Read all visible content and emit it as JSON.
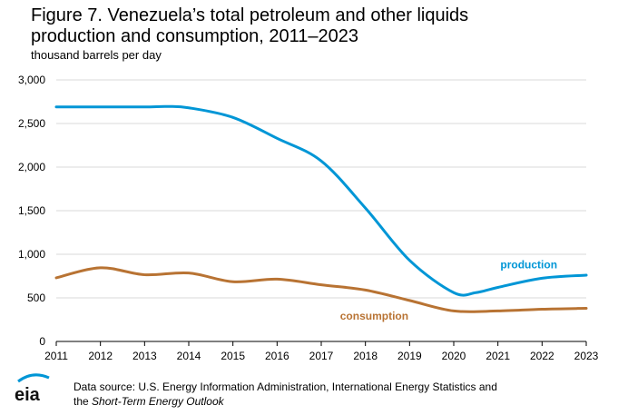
{
  "header": {
    "title": "Figure 7. Venezuela’s total petroleum and other liquids\nproduction and consumption, 2011–2023",
    "unit": "thousand barrels per day"
  },
  "footer": {
    "source_prefix": "Data source: U.S. Energy Information Administration, International Energy Statistics and",
    "source_line2_prefix": "the ",
    "source_line2_italic": "Short-Term Energy Outlook",
    "logo_text": "eia"
  },
  "colors": {
    "production": "#0096d6",
    "consumption": "#b87333",
    "grid": "#d9d9d9",
    "axis": "#000000"
  },
  "chart_data": {
    "type": "line",
    "title": "Figure 7. Venezuela’s total petroleum and other liquids production and consumption, 2011–2023",
    "ylabel": "thousand barrels per day",
    "xlim": [
      2011,
      2023
    ],
    "ylim": [
      0,
      3000
    ],
    "x_ticks": [
      "2011",
      "2012",
      "2013",
      "2014",
      "2015",
      "2016",
      "2017",
      "2018",
      "2019",
      "2020",
      "2021",
      "2022",
      "2023"
    ],
    "y_ticks": [
      "0",
      "500",
      "1,000",
      "1,500",
      "2,000",
      "2,500",
      "3,000"
    ],
    "grid": true,
    "series": [
      {
        "name": "production",
        "x": [
          2011,
          2012,
          2013,
          2013.5,
          2014,
          2015,
          2016,
          2017,
          2018,
          2019,
          2020,
          2020.5,
          2021,
          2022,
          2023
        ],
        "values": [
          2690,
          2690,
          2690,
          2695,
          2680,
          2570,
          2330,
          2070,
          1530,
          930,
          560,
          560,
          620,
          725,
          760
        ]
      },
      {
        "name": "consumption",
        "x": [
          2011,
          2012,
          2013,
          2014,
          2015,
          2016,
          2017,
          2018,
          2019,
          2020,
          2021,
          2022,
          2023
        ],
        "values": [
          730,
          845,
          765,
          785,
          685,
          715,
          650,
          590,
          470,
          350,
          350,
          370,
          380
        ]
      }
    ]
  }
}
